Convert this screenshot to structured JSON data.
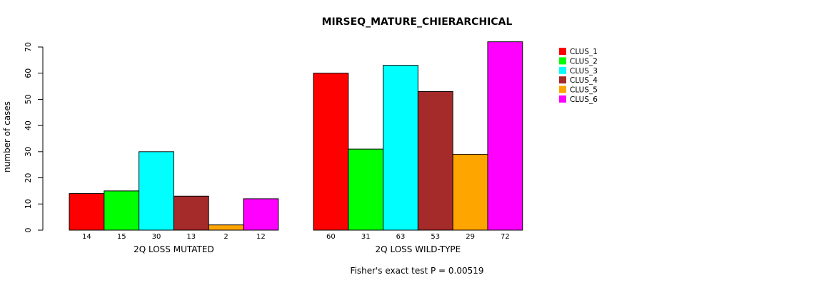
{
  "chart_data": {
    "type": "bar",
    "title": "MIRSEQ_MATURE_CHIERARCHICAL",
    "ylabel": "number of cases",
    "ylim": [
      0,
      70
    ],
    "yticks": [
      0,
      10,
      20,
      30,
      40,
      50,
      60,
      70
    ],
    "groups": [
      {
        "name": "2Q LOSS MUTATED",
        "values": [
          14,
          15,
          30,
          13,
          2,
          12
        ]
      },
      {
        "name": "2Q LOSS WILD-TYPE",
        "values": [
          60,
          31,
          63,
          53,
          29,
          72
        ]
      }
    ],
    "series": [
      {
        "name": "CLUS_1",
        "color": "#ff0000"
      },
      {
        "name": "CLUS_2",
        "color": "#00ff00"
      },
      {
        "name": "CLUS_3",
        "color": "#00ffff"
      },
      {
        "name": "CLUS_4",
        "color": "#a52a2a"
      },
      {
        "name": "CLUS_5",
        "color": "#ffa500"
      },
      {
        "name": "CLUS_6",
        "color": "#ff00ff"
      }
    ],
    "legend_position": "top-right",
    "grid": false,
    "footnote": "Fisher's exact test P = 0.00519"
  }
}
